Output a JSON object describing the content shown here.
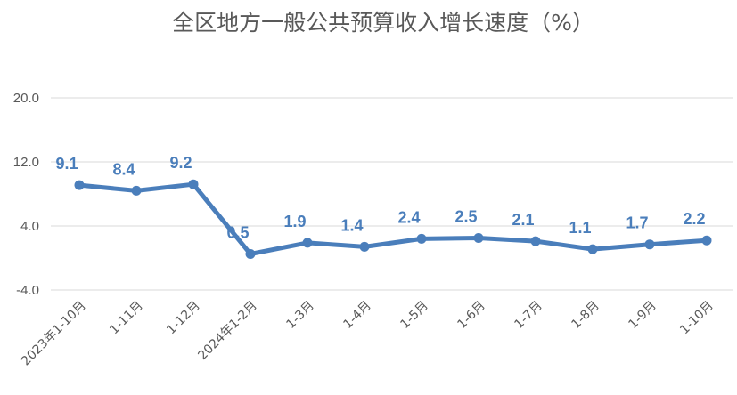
{
  "chart_data": {
    "type": "line",
    "title": "全区地方一般公共预算收入增长速度（%）",
    "categories": [
      "2023年1-10月",
      "1-11月",
      "1-12月",
      "2024年1-2月",
      "1-3月",
      "1-4月",
      "1-5月",
      "1-6月",
      "1-7月",
      "1-8月",
      "1-9月",
      "1-10月"
    ],
    "series": [
      {
        "values": [
          9.1,
          8.4,
          9.2,
          0.5,
          1.9,
          1.4,
          2.4,
          2.5,
          2.1,
          1.1,
          1.7,
          2.2
        ],
        "labels": [
          "9.1",
          "8.4",
          "9.2",
          "0.5",
          "1.9",
          "1.4",
          "2.4",
          "2.5",
          "2.1",
          "1.1",
          "1.7",
          "2.2"
        ]
      }
    ],
    "ylim": [
      -4,
      20
    ],
    "yticks": [
      "-4.0",
      "4.0",
      "12.0",
      "20.0"
    ],
    "ytick_values": [
      -4,
      4,
      12,
      20
    ],
    "grid": true,
    "legend": false,
    "line_color": "#4a7ebb",
    "label_color": "#4a7ebb",
    "xlabel": "",
    "ylabel": ""
  }
}
